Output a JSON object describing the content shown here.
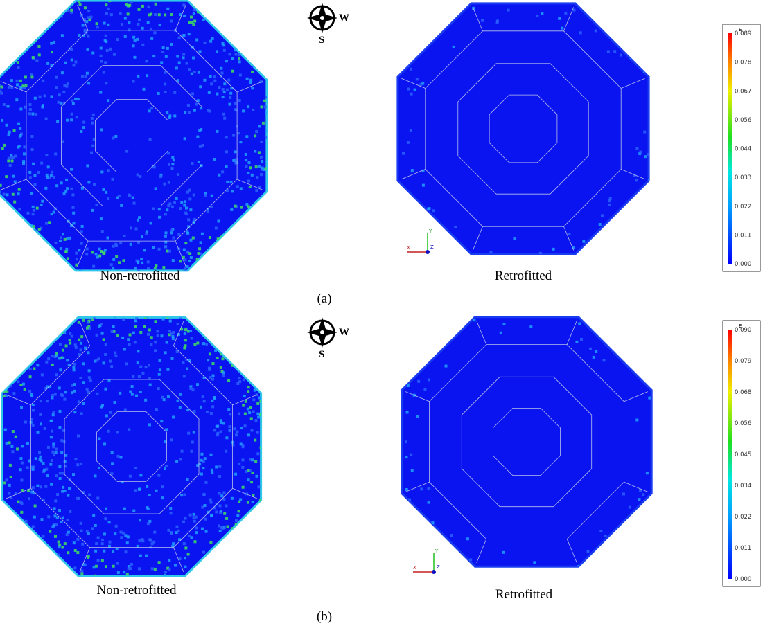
{
  "panels": [
    {
      "caption": "(a)",
      "left_label": "Non-retrofitted",
      "right_label": "Retrofitted",
      "compass": {
        "east_label": "W",
        "south_label": "S"
      },
      "triad": {
        "y": "Y",
        "x": "X",
        "z": "Z"
      },
      "legend": {
        "title": "E",
        "ticks": [
          "0.089",
          "0.078",
          "0.067",
          "0.056",
          "0.044",
          "0.033",
          "0.022",
          "0.011",
          "0.000"
        ]
      }
    },
    {
      "caption": "(b)",
      "left_label": "Non-retrofitted",
      "right_label": "Retrofitted",
      "compass": {
        "east_label": "W",
        "south_label": "S"
      },
      "triad": {
        "y": "Y",
        "x": "X",
        "z": "Z"
      },
      "legend": {
        "title": "E",
        "ticks": [
          "0.090",
          "0.079",
          "0.068",
          "0.056",
          "0.045",
          "0.034",
          "0.022",
          "0.011",
          "0.000"
        ]
      }
    }
  ]
}
